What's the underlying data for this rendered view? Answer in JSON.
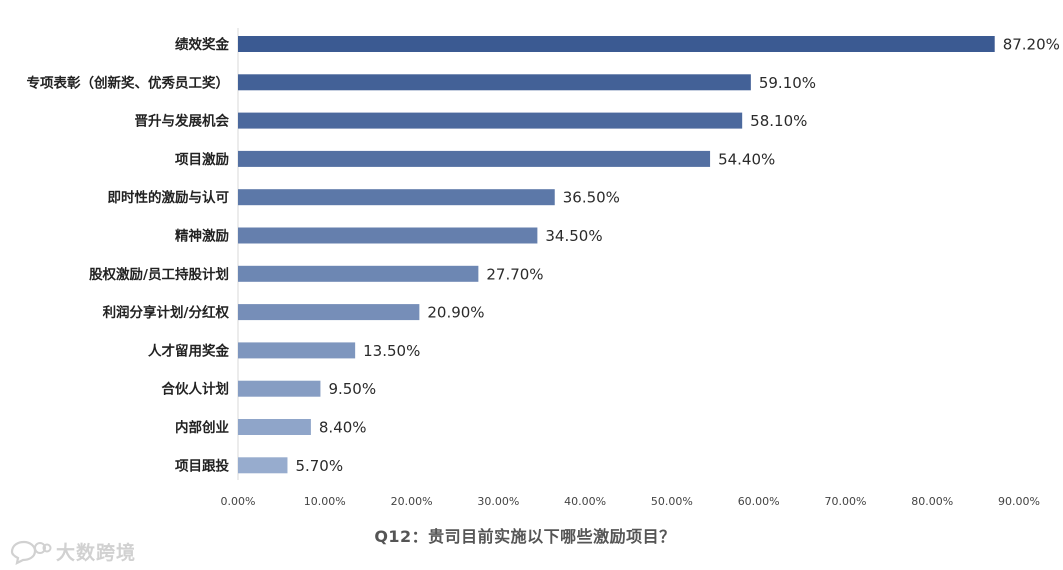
{
  "chart_data": {
    "type": "bar",
    "orientation": "horizontal",
    "title": "Q12：贵司目前实施以下哪些激励项目？",
    "xlabel": "",
    "ylabel": "",
    "categories": [
      "绩效奖金",
      "专项表彰（创新奖、优秀员工奖）",
      "晋升与发展机会",
      "项目激励",
      "即时性的激励与认可",
      "精神激励",
      "股权激励/员工持股计划",
      "利润分享计划/分红权",
      "人才留用奖金",
      "合伙人计划",
      "内部创业",
      "项目跟投"
    ],
    "values": [
      87.2,
      59.1,
      58.1,
      54.4,
      36.5,
      34.5,
      27.7,
      20.9,
      13.5,
      9.5,
      8.4,
      5.7
    ],
    "value_labels": [
      "87.20%",
      "59.10%",
      "58.10%",
      "54.40%",
      "36.50%",
      "34.50%",
      "27.70%",
      "20.90%",
      "13.50%",
      "9.50%",
      "8.40%",
      "5.70%"
    ],
    "xlim": [
      0,
      90
    ],
    "x_ticks": [
      "0.00%",
      "10.00%",
      "20.00%",
      "30.00%",
      "40.00%",
      "50.00%",
      "60.00%",
      "70.00%",
      "80.00%",
      "90.00%"
    ],
    "grid": false,
    "legend": "none",
    "colors": {
      "bar_top": "#3b5a92",
      "bar_bottom": "#97acce",
      "axis": "#d9d9d9"
    }
  },
  "watermark": {
    "text": "大数跨境",
    "icon": "chat-bubble-logo-icon"
  }
}
